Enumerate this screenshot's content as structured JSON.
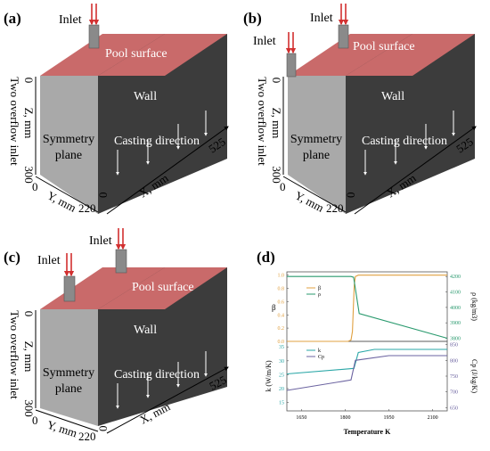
{
  "colors": {
    "pool_top": "#c96a6a",
    "wall_face": "#3c3c3c",
    "symmetry_face": "#a9a9a9",
    "inlet_arrow": "#d23030",
    "axis_text": "#000000",
    "beta_color": "#e0a040",
    "rho_color": "#2a9a6e",
    "k_color": "#2aa7a7",
    "cp_color": "#6b63a0"
  },
  "panels": [
    {
      "tag": "(a)",
      "inlet_labels": [
        "Inlet"
      ],
      "pool": "Pool surface",
      "wall": "Wall",
      "symmetry": [
        "Symmetry",
        "plane"
      ],
      "casting": "Casting direction",
      "side_label": "Two overflow inlet",
      "z_label": "Z, mm",
      "y_label": "Y, mm",
      "x_label": "X, mm",
      "ticks": {
        "z0": "0",
        "z300": "300",
        "y0": "0",
        "y220": "220",
        "x0": "0",
        "x525": "525"
      }
    },
    {
      "tag": "(b)",
      "inlet_labels": [
        "Inlet",
        "Inlet"
      ],
      "pool": "Pool surface",
      "wall": "Wall",
      "symmetry": [
        "Symmetry",
        "plane"
      ],
      "casting": "Casting direction",
      "side_label": "Two overflow inlet",
      "z_label": "Z, mm",
      "y_label": "Y, mm",
      "x_label": "X, mm",
      "ticks": {
        "z0": "0",
        "z300": "300",
        "y0": "0",
        "y220": "220",
        "x0": "0",
        "x525": "525"
      }
    },
    {
      "tag": "(c)",
      "inlet_labels": [
        "Inlet",
        "Inlet"
      ],
      "pool": "Pool surface",
      "wall": "Wall",
      "symmetry": [
        "Symmetry",
        "plane"
      ],
      "casting": "Casting direction",
      "side_label": "Two overflow inlet",
      "z_label": "Z, mm",
      "y_label": "Y, mm",
      "x_label": "X, mm",
      "ticks": {
        "z0": "0",
        "z300": "300",
        "y0": "0",
        "y220": "220",
        "x0": "0",
        "x525": "525"
      }
    }
  ],
  "panel_d": {
    "tag": "(d)",
    "top_left_label": "β",
    "top_right_label": "ρ (kg/m3)",
    "bottom_left_label": "k (W/m/K)",
    "bottom_right_label": "Cp (J/kg/K)",
    "xlabel": "Temperature K",
    "legend_top": [
      "β",
      "ρ"
    ],
    "legend_bottom": [
      "k",
      "Cp"
    ],
    "x_ticks": [
      "1650",
      "1800",
      "1950",
      "2100"
    ],
    "beta_ticks": [
      "0.0",
      "0.2",
      "0.4",
      "0.6",
      "0.8",
      "1.0"
    ],
    "rho_ticks": [
      "3800",
      "3900",
      "4000",
      "4100",
      "4200"
    ],
    "k_ticks": [
      "15",
      "20",
      "25",
      "30",
      "35"
    ],
    "cp_ticks": [
      "650",
      "700",
      "750",
      "800",
      "850"
    ]
  },
  "chart_data": {
    "type": "line",
    "xlabel": "Temperature K",
    "xlim": [
      1600,
      2150
    ],
    "series": [
      {
        "name": "β",
        "axis": "beta",
        "ylim": [
          0,
          1.05
        ],
        "x": [
          1600,
          1810,
          1820,
          1825,
          1828,
          1831,
          1835,
          1845,
          2150
        ],
        "values": [
          0.0,
          0.0,
          0.02,
          0.15,
          0.5,
          0.85,
          0.98,
          1.0,
          1.0
        ]
      },
      {
        "name": "ρ",
        "axis": "rho",
        "ylim": [
          3780,
          4230
        ],
        "x": [
          1600,
          1820,
          1829,
          1848,
          2150
        ],
        "values": [
          4200,
          4200,
          4195,
          3960,
          3800
        ]
      },
      {
        "name": "k",
        "axis": "k",
        "ylim": [
          12,
          37
        ],
        "x": [
          1600,
          1830,
          1845,
          1900,
          2150
        ],
        "values": [
          25.3,
          27.3,
          33.0,
          34.1,
          34.1
        ]
      },
      {
        "name": "Cp",
        "axis": "cp",
        "ylim": [
          640,
          860
        ],
        "x": [
          1600,
          1820,
          1835,
          1950,
          2150
        ],
        "values": [
          705,
          738,
          800,
          815,
          815
        ]
      }
    ]
  }
}
